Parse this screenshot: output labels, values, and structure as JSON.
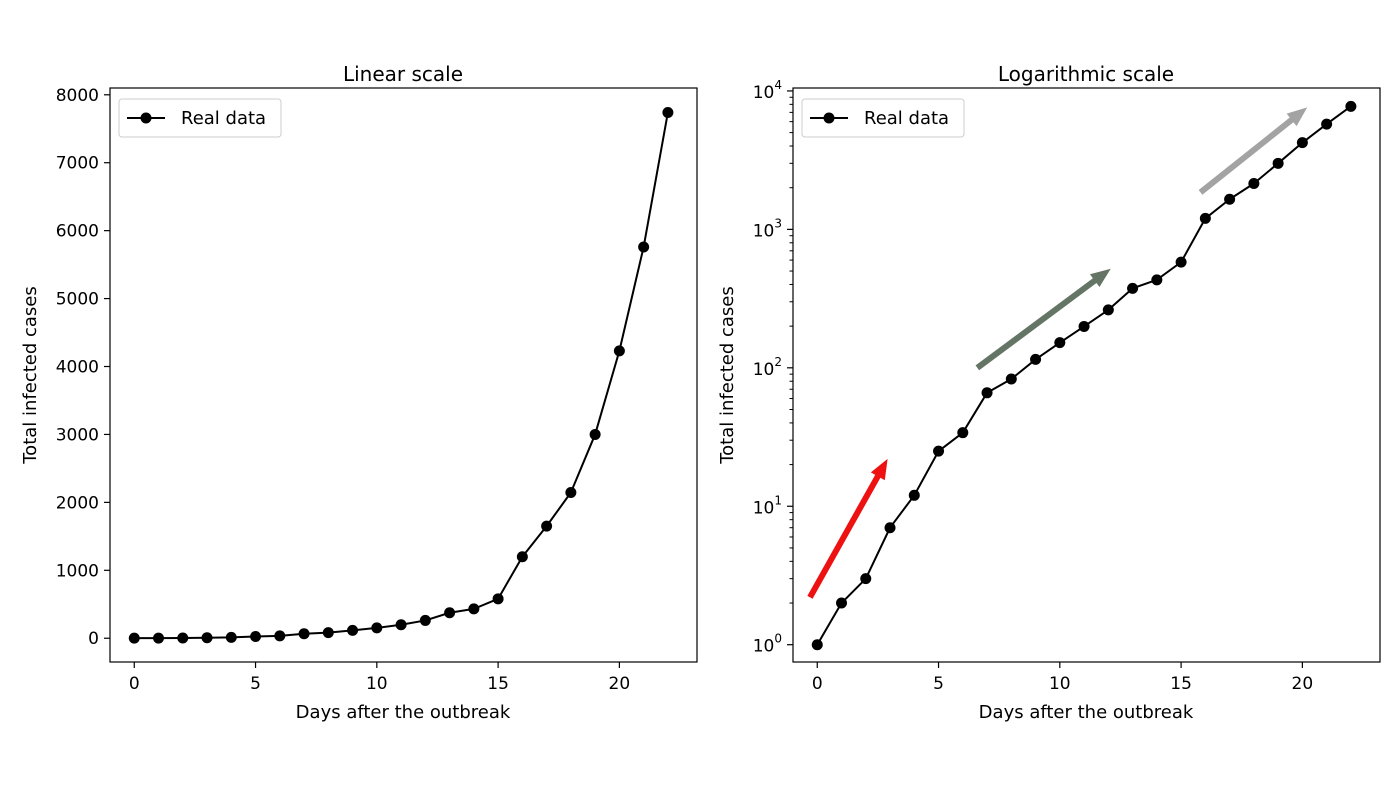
{
  "chart_data": [
    {
      "type": "line",
      "title": "Linear scale",
      "xlabel": "Days after the outbreak",
      "ylabel": "Total infected cases",
      "yscale": "linear",
      "xlim": [
        -1,
        23.2
      ],
      "ylim": [
        -350,
        8100
      ],
      "xticks": [
        0,
        5,
        10,
        15,
        20
      ],
      "xtick_labels": [
        "0",
        "5",
        "10",
        "15",
        "20"
      ],
      "yticks": [
        0,
        1000,
        2000,
        3000,
        4000,
        5000,
        6000,
        7000,
        8000
      ],
      "ytick_labels": [
        "0",
        "1000",
        "2000",
        "3000",
        "4000",
        "5000",
        "6000",
        "7000",
        "8000"
      ],
      "legend": {
        "position": "top-left",
        "entries": [
          "Real data"
        ]
      },
      "grid": false,
      "line_color": "#000000",
      "series": [
        {
          "name": "Real data",
          "x": [
            0,
            1,
            2,
            3,
            4,
            5,
            6,
            7,
            8,
            9,
            10,
            11,
            12,
            13,
            14,
            15,
            16,
            17,
            18,
            19,
            20,
            21,
            22
          ],
          "y": [
            1,
            2,
            3,
            7,
            12,
            25,
            34,
            66,
            83,
            115,
            152,
            199,
            262,
            375,
            432,
            580,
            1200,
            1650,
            2145,
            3000,
            4230,
            5760,
            7740
          ]
        }
      ]
    },
    {
      "type": "line",
      "title": "Logarithmic scale",
      "xlabel": "Days after the outbreak",
      "ylabel": "Total infected cases",
      "yscale": "log",
      "xlim": [
        -1,
        23.2
      ],
      "ylim": [
        0.75,
        10500
      ],
      "xticks": [
        0,
        5,
        10,
        15,
        20
      ],
      "xtick_labels": [
        "0",
        "5",
        "10",
        "15",
        "20"
      ],
      "yticks": [
        1,
        10,
        100,
        1000,
        10000
      ],
      "ytick_labels": [
        {
          "base": "10",
          "exp": "0"
        },
        {
          "base": "10",
          "exp": "1"
        },
        {
          "base": "10",
          "exp": "2"
        },
        {
          "base": "10",
          "exp": "3"
        },
        {
          "base": "10",
          "exp": "4"
        }
      ],
      "legend": {
        "position": "top-left",
        "entries": [
          "Real data"
        ]
      },
      "grid": false,
      "line_color": "#000000",
      "series": [
        {
          "name": "Real data",
          "x": [
            0,
            1,
            2,
            3,
            4,
            5,
            6,
            7,
            8,
            9,
            10,
            11,
            12,
            13,
            14,
            15,
            16,
            17,
            18,
            19,
            20,
            21,
            22
          ],
          "y": [
            1,
            2,
            3,
            7,
            12,
            25,
            34,
            66,
            83,
            115,
            152,
            199,
            262,
            375,
            432,
            580,
            1200,
            1650,
            2145,
            3000,
            4230,
            5760,
            7740
          ]
        }
      ],
      "annotations": [
        {
          "kind": "arrow",
          "from": [
            -0.3,
            2.2
          ],
          "to": [
            2.9,
            22
          ],
          "color": "#ee1111"
        },
        {
          "kind": "arrow",
          "from": [
            6.6,
            100
          ],
          "to": [
            12.1,
            520
          ],
          "color": "#657565"
        },
        {
          "kind": "arrow",
          "from": [
            15.8,
            1850
          ],
          "to": [
            20.2,
            7600
          ],
          "color": "#a3a3a3"
        }
      ]
    }
  ]
}
